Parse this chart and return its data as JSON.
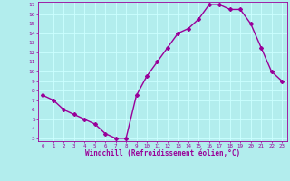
{
  "x": [
    0,
    1,
    2,
    3,
    4,
    5,
    6,
    7,
    8,
    9,
    10,
    11,
    12,
    13,
    14,
    15,
    16,
    17,
    18,
    19,
    20,
    21,
    22,
    23
  ],
  "y": [
    7.5,
    7.0,
    6.0,
    5.5,
    5.0,
    4.5,
    3.5,
    3.0,
    3.0,
    7.5,
    9.5,
    11.0,
    12.5,
    14.0,
    14.5,
    15.5,
    17.0,
    17.0,
    16.5,
    16.5,
    15.0,
    12.5,
    10.0,
    9.0
  ],
  "line_color": "#990099",
  "marker": "D",
  "markersize": 2.0,
  "linewidth": 1.0,
  "bg_color": "#b2eded",
  "grid_color": "#ccffff",
  "xlabel": "Windchill (Refroidissement éolien,°C)",
  "xlabel_color": "#990099",
  "tick_color": "#990099",
  "ylim": [
    3,
    17
  ],
  "xlim": [
    -0.5,
    23.5
  ],
  "yticks": [
    3,
    4,
    5,
    6,
    7,
    8,
    9,
    10,
    11,
    12,
    13,
    14,
    15,
    16,
    17
  ],
  "xticks": [
    0,
    1,
    2,
    3,
    4,
    5,
    6,
    7,
    8,
    9,
    10,
    11,
    12,
    13,
    14,
    15,
    16,
    17,
    18,
    19,
    20,
    21,
    22,
    23
  ],
  "spine_color": "#990099"
}
